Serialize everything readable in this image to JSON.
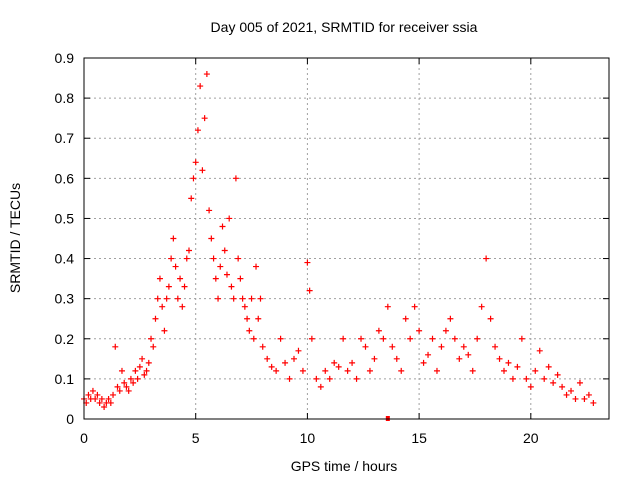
{
  "chart_data": {
    "type": "scatter",
    "title": "Day 005 of 2021, SRMTID for receiver ssia",
    "xlabel": "GPS time / hours",
    "ylabel": "SRMTID / TECUs",
    "xlim": [
      0,
      23.5
    ],
    "ylim": [
      0,
      0.9
    ],
    "xticks": [
      0,
      5,
      10,
      15,
      20
    ],
    "yticks": [
      0,
      0.1,
      0.2,
      0.3,
      0.4,
      0.5,
      0.6,
      0.7,
      0.8,
      0.9
    ],
    "xtick_labels": [
      "0",
      "5",
      "10",
      "15",
      "20"
    ],
    "ytick_labels": [
      "0",
      "0.1",
      "0.2",
      "0.3",
      "0.4",
      "0.5",
      "0.6",
      "0.7",
      "0.8",
      "0.9"
    ],
    "grid": true,
    "marker": "+",
    "color": "#ff0000",
    "series": [
      {
        "name": "SRMTID",
        "x": [
          0.0,
          0.1,
          0.2,
          0.3,
          0.4,
          0.5,
          0.6,
          0.7,
          0.8,
          0.9,
          1.0,
          1.1,
          1.2,
          1.3,
          1.4,
          1.5,
          1.6,
          1.7,
          1.8,
          1.9,
          2.0,
          2.1,
          2.2,
          2.3,
          2.4,
          2.5,
          2.6,
          2.7,
          2.8,
          2.9,
          3.0,
          3.1,
          3.2,
          3.3,
          3.4,
          3.5,
          3.6,
          3.7,
          3.8,
          3.9,
          4.0,
          4.1,
          4.2,
          4.3,
          4.4,
          4.5,
          4.6,
          4.7,
          4.8,
          4.9,
          5.0,
          5.1,
          5.2,
          5.3,
          5.4,
          5.5,
          5.6,
          5.7,
          5.8,
          5.9,
          6.0,
          6.1,
          6.2,
          6.3,
          6.4,
          6.5,
          6.6,
          6.7,
          6.8,
          6.9,
          7.0,
          7.1,
          7.2,
          7.3,
          7.4,
          7.5,
          7.6,
          7.7,
          7.8,
          7.9,
          8.0,
          8.2,
          8.4,
          8.6,
          8.8,
          9.0,
          9.2,
          9.4,
          9.6,
          9.8,
          10.0,
          10.1,
          10.2,
          10.4,
          10.6,
          10.8,
          11.0,
          11.2,
          11.4,
          11.6,
          11.8,
          12.0,
          12.2,
          12.4,
          12.6,
          12.8,
          13.0,
          13.2,
          13.4,
          13.6,
          13.8,
          14.0,
          14.2,
          14.4,
          14.6,
          14.8,
          15.0,
          15.2,
          15.4,
          15.6,
          15.8,
          16.0,
          16.2,
          16.4,
          16.6,
          16.8,
          17.0,
          17.2,
          17.4,
          17.6,
          17.8,
          18.0,
          18.2,
          18.4,
          18.6,
          18.8,
          19.0,
          19.2,
          19.4,
          19.6,
          19.8,
          20.0,
          20.2,
          20.4,
          20.6,
          20.8,
          21.0,
          21.2,
          21.4,
          21.6,
          21.8,
          22.0,
          22.2,
          22.4,
          22.6,
          22.8
        ],
        "y": [
          0.05,
          0.04,
          0.06,
          0.05,
          0.07,
          0.05,
          0.06,
          0.04,
          0.05,
          0.03,
          0.04,
          0.05,
          0.04,
          0.06,
          0.18,
          0.08,
          0.07,
          0.12,
          0.09,
          0.08,
          0.07,
          0.1,
          0.09,
          0.12,
          0.1,
          0.13,
          0.15,
          0.11,
          0.12,
          0.14,
          0.2,
          0.18,
          0.25,
          0.3,
          0.35,
          0.28,
          0.22,
          0.3,
          0.33,
          0.4,
          0.45,
          0.38,
          0.3,
          0.35,
          0.28,
          0.33,
          0.4,
          0.42,
          0.55,
          0.6,
          0.64,
          0.72,
          0.83,
          0.62,
          0.75,
          0.86,
          0.52,
          0.45,
          0.4,
          0.35,
          0.3,
          0.38,
          0.48,
          0.42,
          0.36,
          0.5,
          0.33,
          0.3,
          0.6,
          0.4,
          0.35,
          0.3,
          0.28,
          0.25,
          0.22,
          0.3,
          0.2,
          0.38,
          0.25,
          0.3,
          0.18,
          0.15,
          0.13,
          0.12,
          0.2,
          0.14,
          0.1,
          0.15,
          0.17,
          0.12,
          0.39,
          0.32,
          0.2,
          0.1,
          0.08,
          0.12,
          0.1,
          0.14,
          0.13,
          0.2,
          0.12,
          0.14,
          0.1,
          0.2,
          0.18,
          0.12,
          0.15,
          0.22,
          0.2,
          0.28,
          0.18,
          0.15,
          0.12,
          0.25,
          0.2,
          0.28,
          0.22,
          0.14,
          0.16,
          0.2,
          0.12,
          0.18,
          0.22,
          0.25,
          0.2,
          0.15,
          0.18,
          0.16,
          0.12,
          0.2,
          0.28,
          0.4,
          0.25,
          0.18,
          0.15,
          0.12,
          0.14,
          0.1,
          0.13,
          0.2,
          0.1,
          0.08,
          0.12,
          0.17,
          0.1,
          0.13,
          0.09,
          0.11,
          0.08,
          0.06,
          0.07,
          0.05,
          0.09,
          0.05,
          0.06,
          0.04
        ]
      }
    ],
    "outlier_marker": {
      "x": 13.6,
      "y": 0.0
    }
  }
}
